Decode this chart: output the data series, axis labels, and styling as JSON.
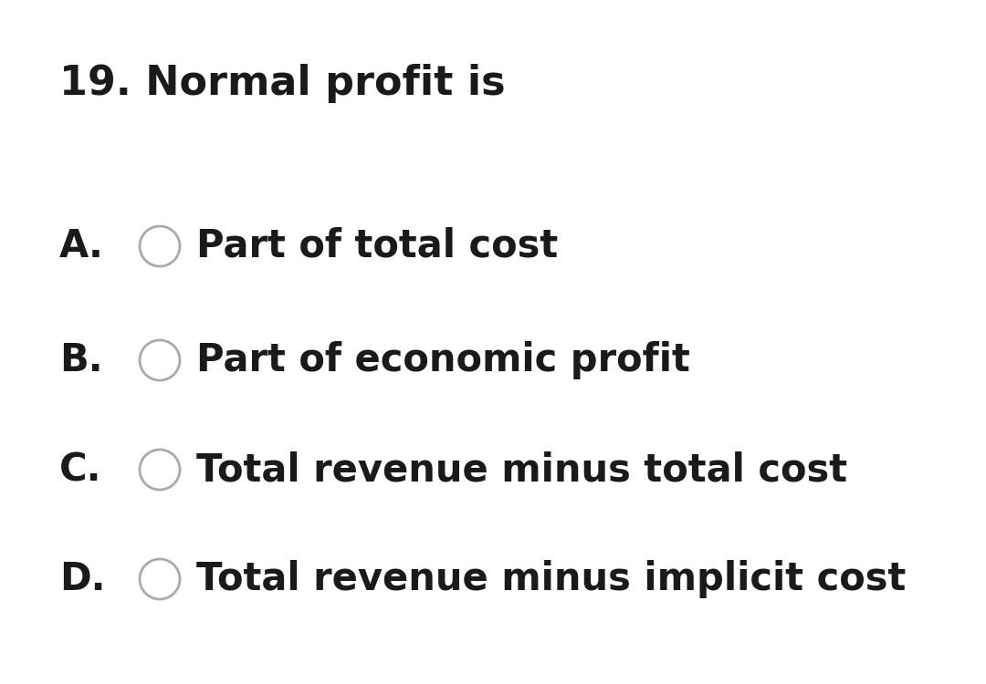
{
  "title": "19. Normal profit is",
  "options": [
    {
      "label": "A.",
      "text": "Part of total cost"
    },
    {
      "label": "B.",
      "text": "Part of economic profit"
    },
    {
      "label": "C.",
      "text": "Total revenue minus total cost"
    },
    {
      "label": "D.",
      "text": "Total revenue minus implicit cost"
    }
  ],
  "background_color": "#ffffff",
  "text_color": "#1a1a1a",
  "title_fontsize": 32,
  "option_label_fontsize": 30,
  "option_text_fontsize": 30,
  "circle_linewidth": 2.0,
  "circle_color": "#aaaaaa"
}
